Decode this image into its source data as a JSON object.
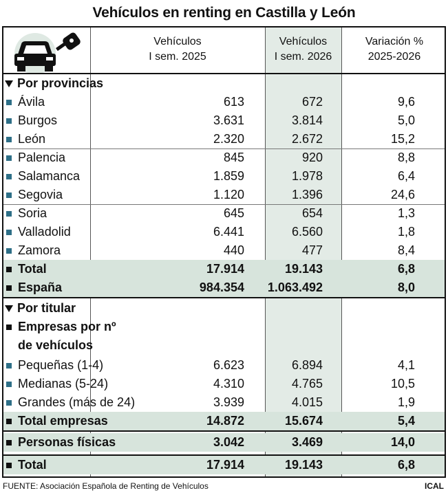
{
  "title": "Vehículos en renting en Castilla y León",
  "columns": {
    "col1": [
      "Vehículos",
      "I sem. 2025"
    ],
    "col2": [
      "Vehículos",
      "I sem. 2026"
    ],
    "col3": [
      "Variación %",
      "2025-2026"
    ]
  },
  "icon": "car-key-icon",
  "sections": {
    "provincias": "Por provincias",
    "titular": "Por titular",
    "empresas": [
      "Empresas por nº",
      "de vehículos"
    ]
  },
  "colors": {
    "band": "#d7e4dc",
    "shade_col": "#e3ebe6",
    "bullet": "#2e6f87"
  },
  "chart_data": {
    "type": "table",
    "title": "Vehículos en renting en Castilla y León",
    "columns": [
      "Vehículos I sem. 2025",
      "Vehículos I sem. 2026",
      "Variación % 2025-2026"
    ],
    "provincias": [
      {
        "label": "Ávila",
        "v2025": "613",
        "v2026": "672",
        "var": "9,6"
      },
      {
        "label": "Burgos",
        "v2025": "3.631",
        "v2026": "3.814",
        "var": "5,0"
      },
      {
        "label": "León",
        "v2025": "2.320",
        "v2026": "2.672",
        "var": "15,2"
      },
      {
        "label": "Palencia",
        "v2025": "845",
        "v2026": "920",
        "var": "8,8"
      },
      {
        "label": "Salamanca",
        "v2025": "1.859",
        "v2026": "1.978",
        "var": "6,4"
      },
      {
        "label": "Segovia",
        "v2025": "1.120",
        "v2026": "1.396",
        "var": "24,6"
      },
      {
        "label": "Soria",
        "v2025": "645",
        "v2026": "654",
        "var": "1,3"
      },
      {
        "label": "Valladolid",
        "v2025": "6.441",
        "v2026": "6.560",
        "var": "1,8"
      },
      {
        "label": "Zamora",
        "v2025": "440",
        "v2026": "477",
        "var": "8,4"
      }
    ],
    "total_cyl": {
      "label": "Total",
      "v2025": "17.914",
      "v2026": "19.143",
      "var": "6,8"
    },
    "espana": {
      "label": "España",
      "v2025": "984.354",
      "v2026": "1.063.492",
      "var": "8,0"
    },
    "empresas": [
      {
        "label": "Pequeñas (1-4)",
        "v2025": "6.623",
        "v2026": "6.894",
        "var": "4,1"
      },
      {
        "label": "Medianas (5-24)",
        "v2025": "4.310",
        "v2026": "4.765",
        "var": "10,5"
      },
      {
        "label": "Grandes (más de 24)",
        "v2025": "3.939",
        "v2026": "4.015",
        "var": "1,9"
      }
    ],
    "total_empresas": {
      "label": "Total empresas",
      "v2025": "14.872",
      "v2026": "15.674",
      "var": "5,4"
    },
    "personas": {
      "label": "Personas físicas",
      "v2025": "3.042",
      "v2026": "3.469",
      "var": "14,0"
    },
    "total_titular": {
      "label": "Total",
      "v2025": "17.914",
      "v2026": "19.143",
      "var": "6,8"
    }
  },
  "footer": {
    "source": "FUENTE: Asociación Española de Renting de Vehículos",
    "brand": "ICAL"
  }
}
